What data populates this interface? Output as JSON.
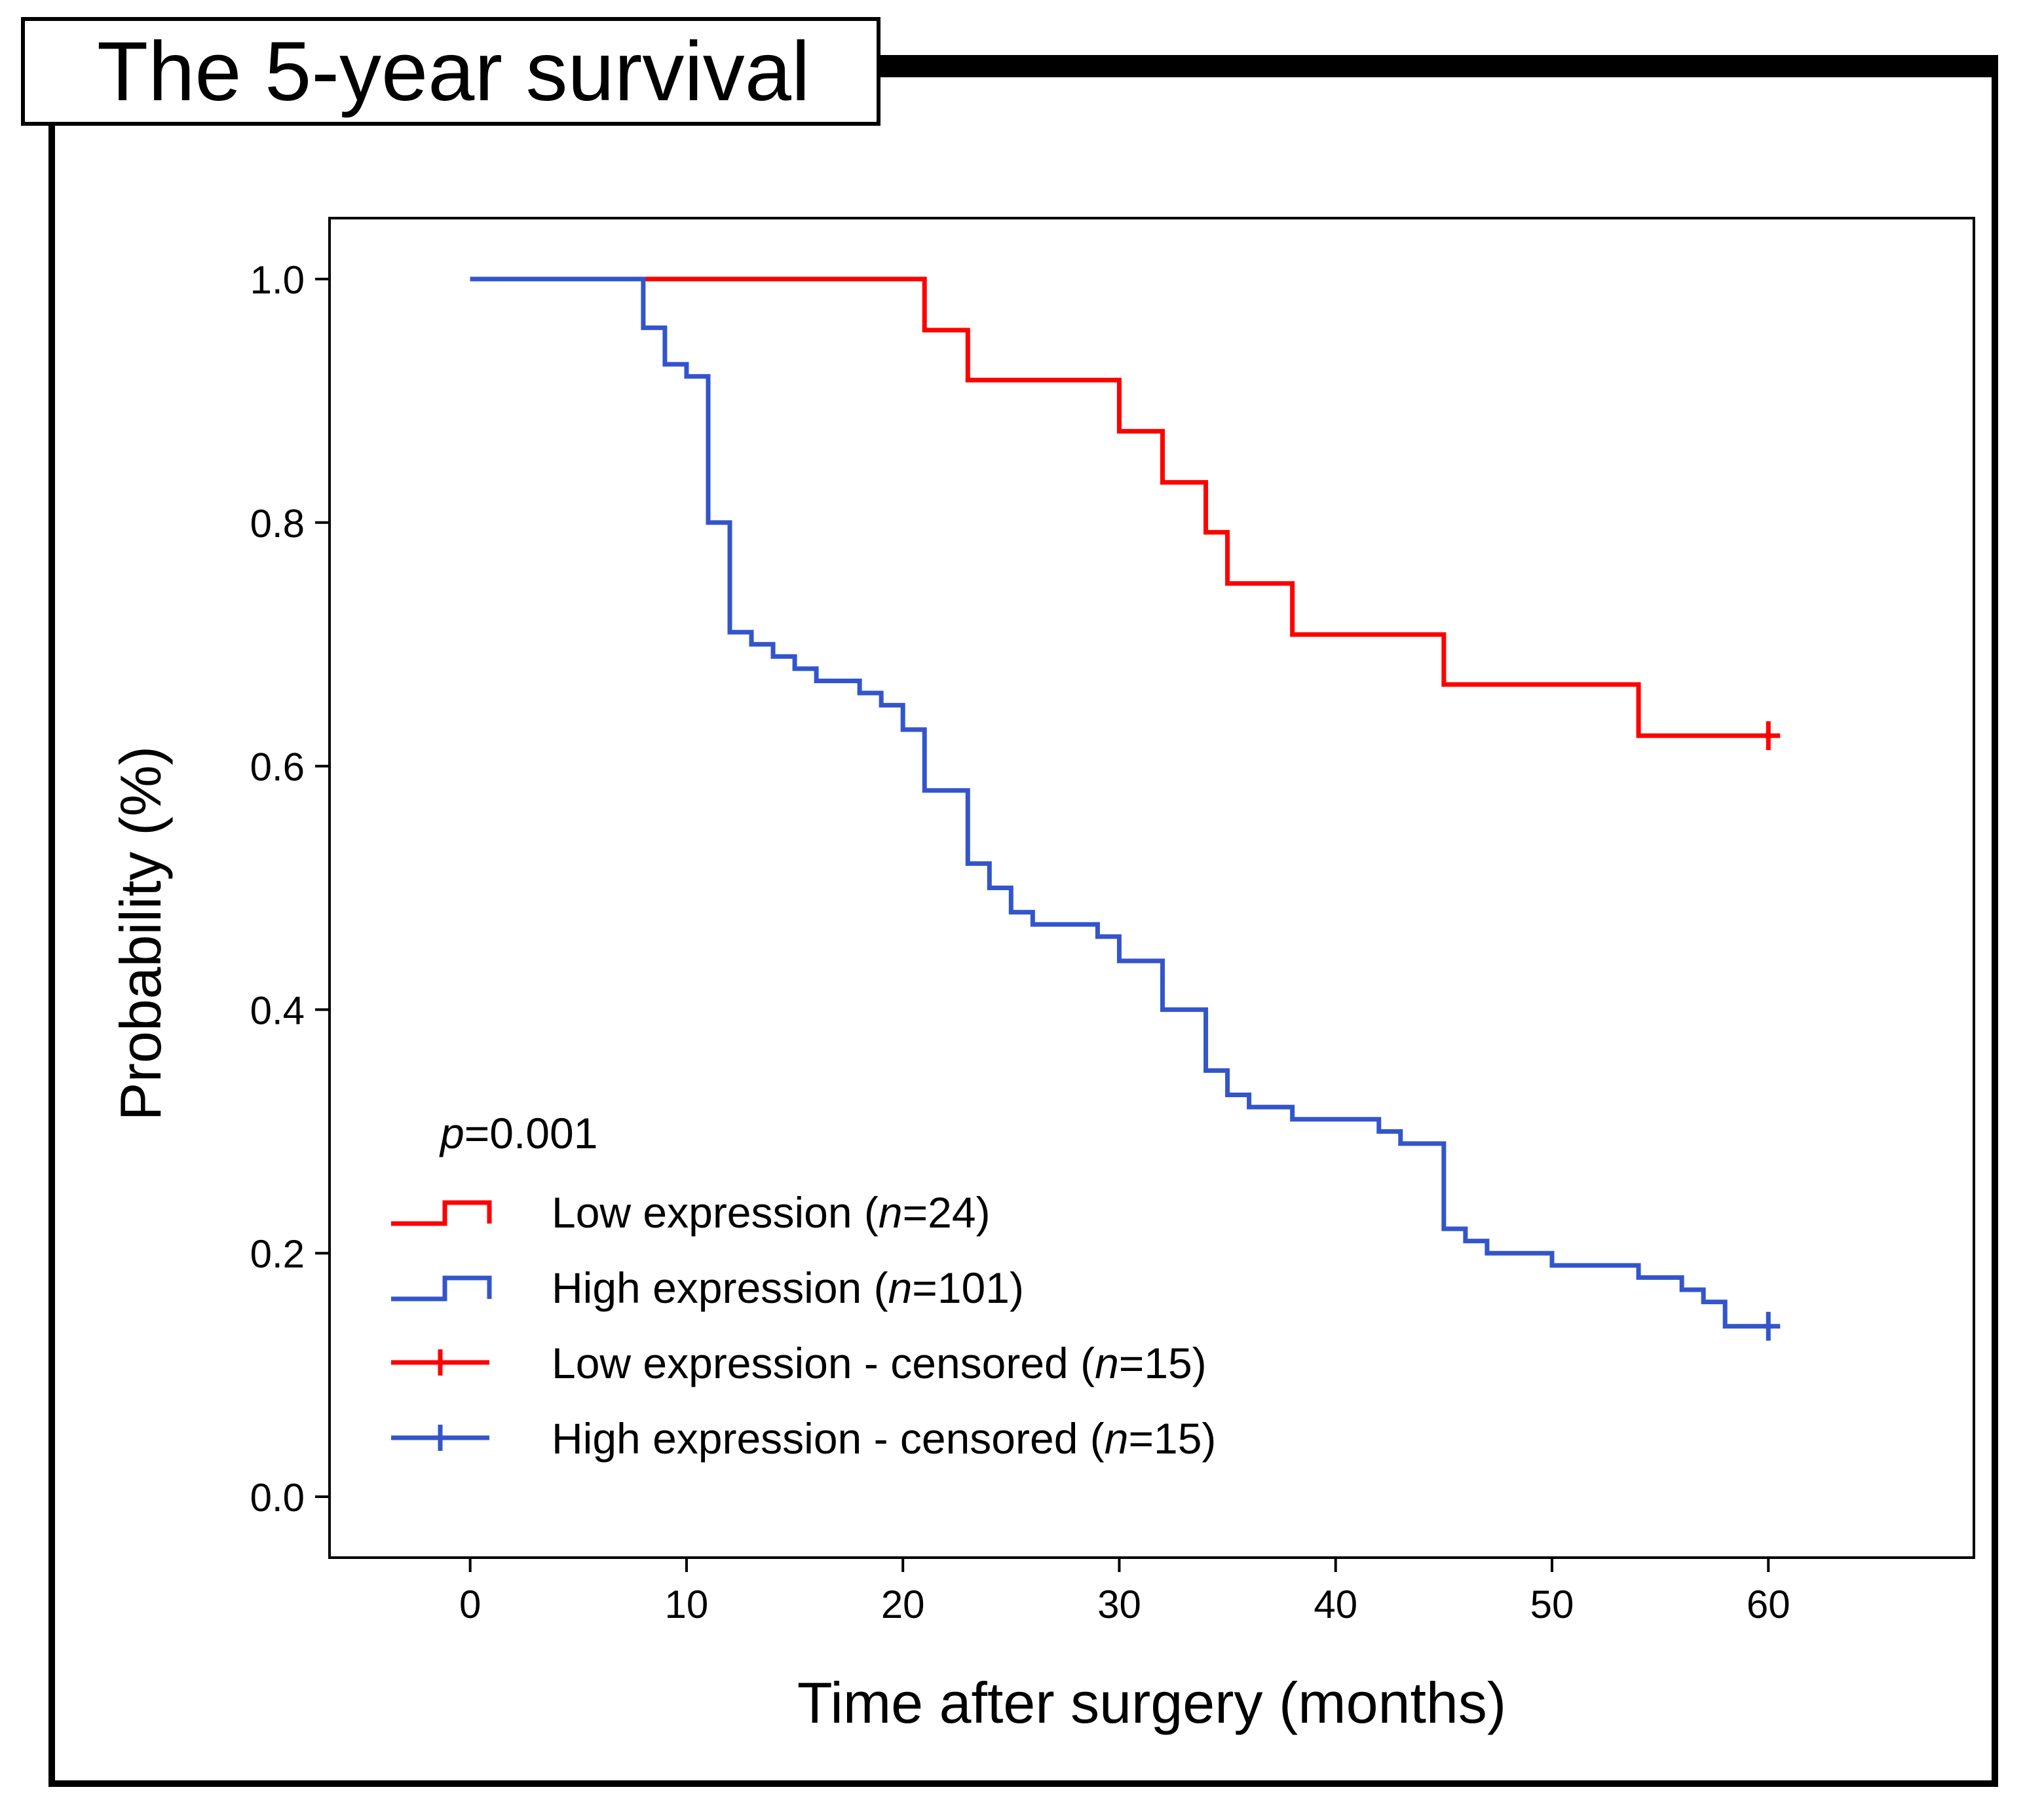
{
  "panel_title": "The 5-year survival",
  "chart_data": {
    "type": "line",
    "subtype": "kaplan-meier",
    "title": "The 5-year survival",
    "xlabel": "Time after surgery (months)",
    "ylabel": "Probability (%)",
    "xlim": [
      -6.5,
      69.5
    ],
    "ylim": [
      -0.05,
      1.05
    ],
    "x_ticks": [
      0,
      10,
      20,
      30,
      40,
      50,
      60
    ],
    "x_tick_labels": [
      "0",
      "10",
      "20",
      "30",
      "40",
      "50",
      "60"
    ],
    "y_ticks": [
      0.0,
      0.2,
      0.4,
      0.6,
      0.8,
      1.0
    ],
    "y_tick_labels": [
      "0.0",
      "0.2",
      "0.4",
      "0.6",
      "0.8",
      "1.0"
    ],
    "annotation": {
      "p_symbol": "p",
      "p_text": "=0.001"
    },
    "legend_position": "lower-left",
    "series": [
      {
        "name": "Low expression",
        "legend": {
          "prefix": "Low expression (",
          "n_symbol": "n",
          "n_text": "=24)"
        },
        "color": "#ff0000",
        "step_points": [
          [
            0,
            1.0
          ],
          [
            21,
            0.958
          ],
          [
            23,
            0.917
          ],
          [
            30,
            0.875
          ],
          [
            32,
            0.833
          ],
          [
            34,
            0.792
          ],
          [
            35,
            0.75
          ],
          [
            38,
            0.708
          ],
          [
            45,
            0.667
          ],
          [
            54,
            0.625
          ],
          [
            60,
            0.625
          ]
        ],
        "censored_points": [
          [
            60,
            0.625
          ]
        ]
      },
      {
        "name": "High expression",
        "legend": {
          "prefix": "High expression (",
          "n_symbol": "n",
          "n_text": "=101)"
        },
        "color": "#3355cc",
        "step_points": [
          [
            0,
            1.0
          ],
          [
            8,
            1.0
          ],
          [
            8,
            0.96
          ],
          [
            9,
            0.93
          ],
          [
            10,
            0.92
          ],
          [
            11,
            0.8
          ],
          [
            12,
            0.71
          ],
          [
            13,
            0.7
          ],
          [
            14,
            0.69
          ],
          [
            15,
            0.68
          ],
          [
            16,
            0.67
          ],
          [
            18,
            0.66
          ],
          [
            19,
            0.65
          ],
          [
            20,
            0.63
          ],
          [
            21,
            0.58
          ],
          [
            23,
            0.52
          ],
          [
            24,
            0.5
          ],
          [
            25,
            0.48
          ],
          [
            26,
            0.47
          ],
          [
            29,
            0.46
          ],
          [
            30,
            0.44
          ],
          [
            32,
            0.4
          ],
          [
            34,
            0.35
          ],
          [
            35,
            0.33
          ],
          [
            36,
            0.32
          ],
          [
            38,
            0.31
          ],
          [
            42,
            0.3
          ],
          [
            43,
            0.29
          ],
          [
            45,
            0.22
          ],
          [
            46,
            0.21
          ],
          [
            47,
            0.2
          ],
          [
            50,
            0.19
          ],
          [
            54,
            0.18
          ],
          [
            56,
            0.17
          ],
          [
            57,
            0.16
          ],
          [
            58,
            0.14
          ],
          [
            60,
            0.14
          ]
        ],
        "censored_points": [
          [
            60,
            0.14
          ]
        ]
      }
    ],
    "censored_legend": [
      {
        "prefix": "Low expression - censored (",
        "n_symbol": "n",
        "n_text": "=15)",
        "color": "#ff0000"
      },
      {
        "prefix": "High expression - censored (",
        "n_symbol": "n",
        "n_text": "=15)",
        "color": "#3355cc"
      }
    ]
  }
}
